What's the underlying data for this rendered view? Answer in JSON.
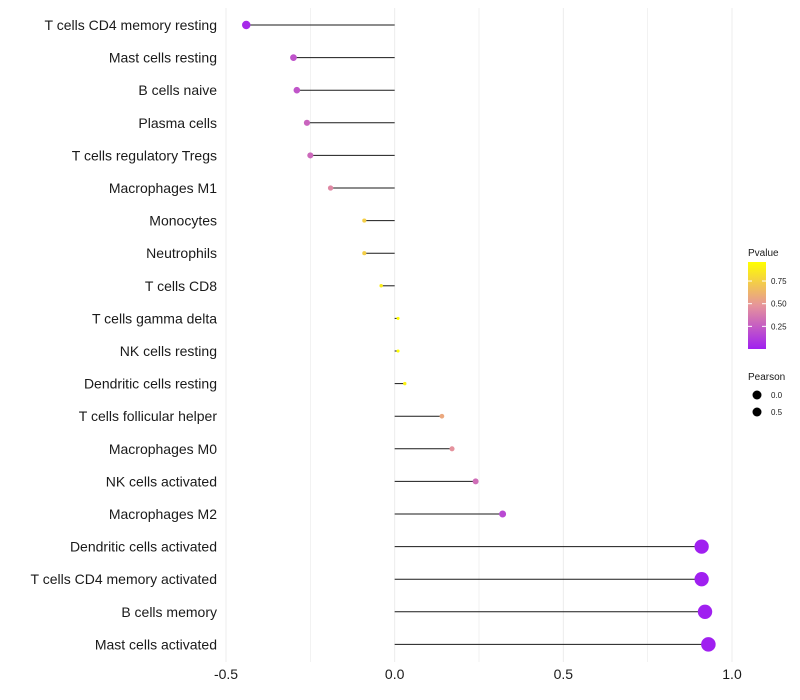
{
  "chart_data": {
    "type": "lollipop",
    "title": "",
    "xlabel": "",
    "ylabel": "",
    "xlim": [
      -0.5,
      1.0
    ],
    "xticks": [
      -0.5,
      0.0,
      0.5,
      1.0
    ],
    "xtick_labels": [
      "-0.5",
      "0.0",
      "0.5",
      "1.0"
    ],
    "grid": true,
    "categories": [
      "T cells CD4 memory resting",
      "Mast cells resting",
      "B cells naive",
      "Plasma cells",
      "T cells regulatory  Tregs",
      "Macrophages M1",
      "Monocytes",
      "Neutrophils",
      "T cells CD8",
      "T cells gamma delta",
      "NK cells resting",
      "Dendritic cells resting",
      "T cells follicular helper",
      "Macrophages M0",
      "NK cells activated",
      "Macrophages M2",
      "Dendritic cells activated",
      "T cells CD4 memory activated",
      "B cells memory",
      "Mast cells activated"
    ],
    "pearson": [
      -0.44,
      -0.3,
      -0.29,
      -0.26,
      -0.25,
      -0.19,
      -0.09,
      -0.09,
      -0.04,
      0.01,
      0.01,
      0.03,
      0.14,
      0.17,
      0.24,
      0.32,
      0.91,
      0.91,
      0.92,
      0.93
    ],
    "pvalue": [
      0.04,
      0.21,
      0.22,
      0.28,
      0.3,
      0.43,
      0.74,
      0.74,
      0.88,
      0.96,
      0.96,
      0.9,
      0.57,
      0.47,
      0.32,
      0.17,
      0.0,
      0.0,
      0.0,
      0.0
    ],
    "legend": {
      "pvalue_title": "Pvalue",
      "pvalue_ticks": [
        0.25,
        0.5,
        0.75
      ],
      "pvalue_tick_labels": [
        "0.25",
        "0.50",
        "0.75"
      ],
      "pvalue_range": [
        0.0,
        0.96
      ],
      "pearson_title": "Pearson",
      "pearson_keys": [
        0.0,
        0.5
      ],
      "pearson_key_labels": [
        "0.0",
        "0.5"
      ],
      "placement": "right",
      "colors": {
        "low": "#a020f0",
        "mid": "#e6949b",
        "high": "#ffff00"
      }
    }
  }
}
